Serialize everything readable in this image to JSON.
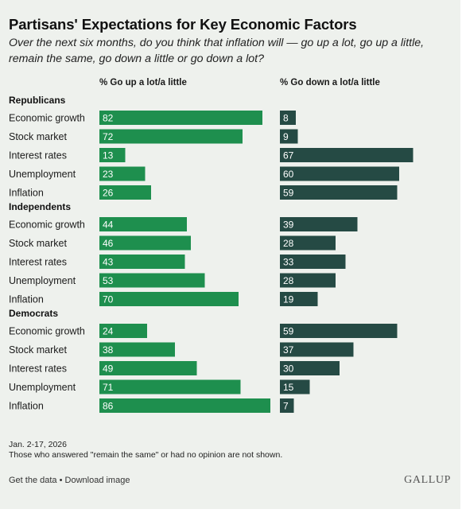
{
  "header": {
    "title": "Partisans' Expectations for Key Economic Factors",
    "subtitle": "Over the next six months, do you think that inflation will — go up a lot, go up a little, remain the same, go down a little or go down a lot?"
  },
  "chart_data": {
    "type": "bar",
    "columns": [
      "% Go up a lot/a little",
      "% Go down a lot/a little"
    ],
    "groups": [
      {
        "name": "Republicans",
        "categories": [
          "Economic growth",
          "Stock market",
          "Interest rates",
          "Unemployment",
          "Inflation"
        ],
        "up": [
          82,
          72,
          13,
          23,
          26
        ],
        "down": [
          8,
          9,
          67,
          60,
          59
        ]
      },
      {
        "name": "Independents",
        "categories": [
          "Economic growth",
          "Stock market",
          "Interest rates",
          "Unemployment",
          "Inflation"
        ],
        "up": [
          44,
          46,
          43,
          53,
          70
        ],
        "down": [
          39,
          28,
          33,
          28,
          19
        ]
      },
      {
        "name": "Democrats",
        "categories": [
          "Economic growth",
          "Stock market",
          "Interest rates",
          "Unemployment",
          "Inflation"
        ],
        "up": [
          24,
          38,
          49,
          71,
          86
        ],
        "down": [
          59,
          37,
          30,
          15,
          7
        ]
      }
    ],
    "colors": {
      "up": "#1e8f4e",
      "down": "#254a44"
    }
  },
  "footer": {
    "date": "Jan. 2-17, 2026",
    "note": "Those who answered \"remain the same\" or had no opinion are not shown.",
    "get_data": "Get the data",
    "separator": " • ",
    "download": "Download image",
    "logo": "GALLUP"
  }
}
